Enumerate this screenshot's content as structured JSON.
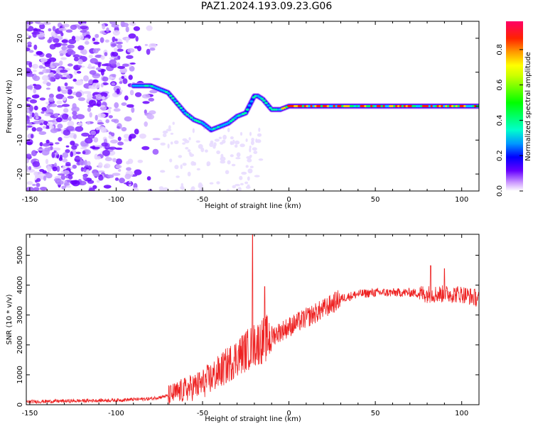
{
  "title": "PAZ1.2024.193.09.23.G06",
  "chart_data": [
    {
      "type": "heatmap",
      "xlabel": "Height of straight line (km)",
      "ylabel": "Frequency (Hz)",
      "xlim": [
        -152,
        110
      ],
      "ylim": [
        -25,
        25
      ],
      "xticks": [
        -150,
        -100,
        -50,
        0,
        50,
        100
      ],
      "yticks": [
        -20,
        -10,
        0,
        10,
        20
      ],
      "colorbar": {
        "label": "Normalized spectral amplitude",
        "range": [
          0,
          0.96
        ],
        "ticks": [
          0.0,
          0.2,
          0.4,
          0.6,
          0.8
        ],
        "colormap": "gist_ncar"
      },
      "ridge": {
        "description_points_height_km": [
          -90,
          -80,
          -75,
          -70,
          -65,
          -60,
          -55,
          -50,
          -45,
          -40,
          -35,
          -30,
          -25,
          -20,
          -18,
          -15,
          -10,
          -5,
          0,
          50,
          110
        ],
        "description_points_freq_hz": [
          6,
          6,
          5,
          4,
          1,
          -2,
          -4,
          -5,
          -7,
          -6,
          -5,
          -3,
          -2,
          3,
          3,
          2,
          -1,
          -1,
          0,
          0,
          0
        ]
      },
      "noise_region_km": [
        -152,
        -75
      ]
    },
    {
      "type": "line",
      "xlabel": "Height of straight line (km)",
      "ylabel": "SNR (10 * v/v)",
      "xlim": [
        -152,
        110
      ],
      "ylim": [
        0,
        5700
      ],
      "xticks": [
        -150,
        -100,
        -50,
        0,
        50,
        100
      ],
      "yticks": [
        0,
        1000,
        2000,
        3000,
        4000,
        5000
      ],
      "series_color": "#ee2222",
      "trend_x": [
        -152,
        -100,
        -80,
        -70,
        -60,
        -50,
        -40,
        -30,
        -20,
        -10,
        0,
        10,
        20,
        30,
        40,
        50,
        60,
        70,
        80,
        90,
        100,
        110
      ],
      "trend_y": [
        100,
        150,
        200,
        300,
        500,
        700,
        1100,
        1600,
        2000,
        2300,
        2600,
        2900,
        3200,
        3550,
        3700,
        3750,
        3750,
        3750,
        3700,
        3700,
        3700,
        3550
      ],
      "spikes": [
        {
          "x": -21,
          "y": 5700
        },
        {
          "x": -14,
          "y": 3950
        },
        {
          "x": 82,
          "y": 4650
        },
        {
          "x": 90,
          "y": 4550
        }
      ]
    }
  ]
}
